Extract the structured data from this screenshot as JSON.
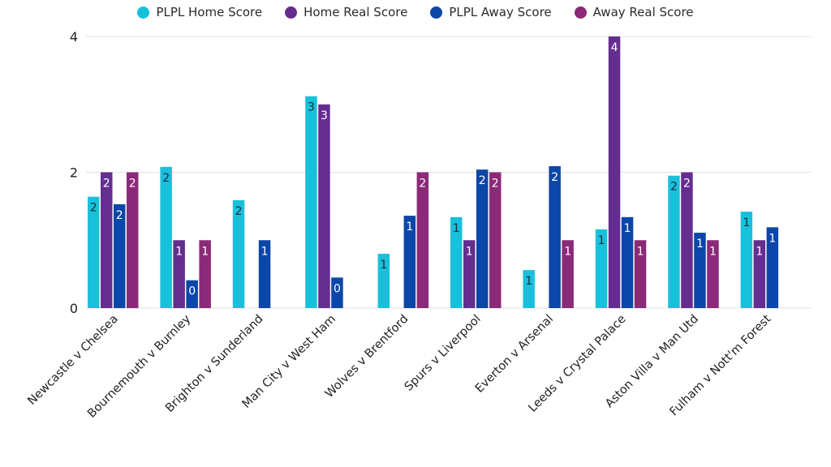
{
  "chart_data": {
    "type": "bar",
    "title": "",
    "xlabel": "",
    "ylabel": "",
    "ylim": [
      0,
      4
    ],
    "yticks": [
      "0",
      "2",
      "4"
    ],
    "ytick_values": [
      0,
      2,
      4
    ],
    "grid": true,
    "legend_position": "top-center",
    "categories": [
      "Newcastle v Chelsea",
      "Bournemouth v Burnley",
      "Brighton v Sunderland",
      "Man City v West Ham",
      "Wolves v Brentford",
      "Spurs v Liverpool",
      "Everton v Arsenal",
      "Leeds v Crystal Palace",
      "Aston Villa v Man Utd",
      "Fulham v Nott'm Forest"
    ],
    "series": [
      {
        "name": "PLPL Home Score",
        "color": "#19c0dc",
        "label_color": "#1a2a3a",
        "values": [
          1.64,
          2.08,
          1.59,
          3.12,
          0.8,
          1.34,
          0.56,
          1.16,
          1.95,
          1.42
        ],
        "labels": [
          "2",
          "2",
          "2",
          "3",
          "1",
          "1",
          "1",
          "1",
          "2",
          "1"
        ]
      },
      {
        "name": "Home Real Score",
        "color": "#652d90",
        "label_color": "#ffffff",
        "values": [
          2,
          1,
          null,
          3,
          null,
          1,
          null,
          4,
          2,
          1
        ],
        "labels": [
          "2",
          "1",
          "",
          "3",
          "",
          "1",
          "",
          "4",
          "2",
          "1"
        ]
      },
      {
        "name": "PLPL Away Score",
        "color": "#0b47a8",
        "label_color": "#ffffff",
        "values": [
          1.53,
          0.41,
          1.0,
          0.45,
          1.36,
          2.04,
          2.09,
          1.34,
          1.11,
          1.19
        ],
        "labels": [
          "2",
          "0",
          "1",
          "0",
          "1",
          "2",
          "2",
          "1",
          "1",
          "1"
        ]
      },
      {
        "name": "Away Real Score",
        "color": "#8b2a78",
        "label_color": "#ffffff",
        "values": [
          2,
          1,
          null,
          null,
          2,
          2,
          1,
          1,
          1,
          null
        ],
        "labels": [
          "2",
          "1",
          "",
          "",
          "2",
          "2",
          "1",
          "1",
          "1",
          ""
        ]
      }
    ]
  }
}
